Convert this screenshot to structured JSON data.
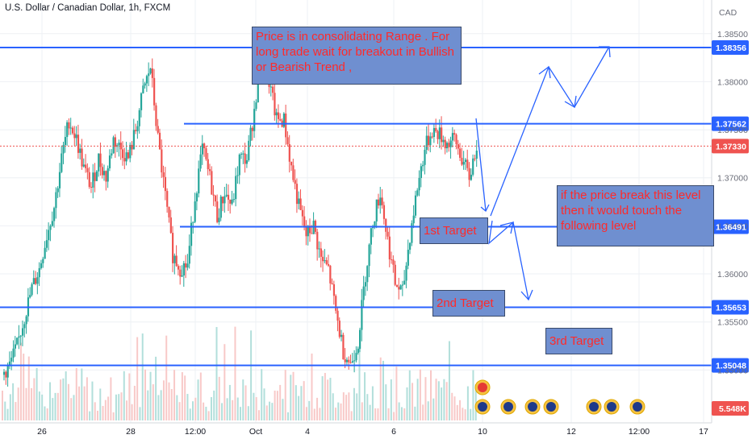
{
  "header": {
    "symbol_title": "U.S. Dollar / Canadian Dollar, 1h, FXCM",
    "currency": "CAD"
  },
  "colors": {
    "up": "#26a69a",
    "down": "#ef5350",
    "level_line": "#2962ff",
    "annotation_box": "#6f8fd0",
    "annotation_text": "#ff2a2a",
    "price_label_bg": "#2962ff",
    "current_label_bg": "#ef5350"
  },
  "annotations": {
    "consolidation_note": "Price is in consolidating Range . For long trade wait for breakout in Bullish or Bearish Trend ,",
    "breakout_note": "if the price break this level then it would touch the following level",
    "target1": "1st Target",
    "target2": "2nd Target",
    "target3": "3rd Target"
  },
  "chart_data": {
    "type": "candlestick",
    "title": "U.S. Dollar / Canadian Dollar, 1h, FXCM",
    "y_unit": "CAD",
    "ylim": [
      1.3445,
      1.3885
    ],
    "y_ticks": [
      "1.38500",
      "1.38000",
      "1.37500",
      "1.37000",
      "1.36500",
      "1.36000",
      "1.35500",
      "1.35000"
    ],
    "x_ticks": [
      "26",
      "28",
      "12:00",
      "Oct",
      "4",
      "6",
      "10",
      "12",
      "12:00",
      "17"
    ],
    "levels": [
      {
        "price": 1.38356,
        "label": "1.38356",
        "start": "full"
      },
      {
        "price": 1.37562,
        "label": "1.37562",
        "start": "28"
      },
      {
        "price": 1.36491,
        "label": "1.36491",
        "start": "28"
      },
      {
        "price": 1.35653,
        "label": "1.35653",
        "start": "full"
      },
      {
        "price": 1.35048,
        "label": "1.35048",
        "start": "full"
      }
    ],
    "current_price": {
      "price": 1.3733,
      "label": "1.37330"
    },
    "volume_label": "5.548K",
    "price_path": [
      1.3495,
      1.3505,
      1.3525,
      1.3555,
      1.3585,
      1.3605,
      1.364,
      1.367,
      1.372,
      1.376,
      1.374,
      1.371,
      1.369,
      1.372,
      1.37,
      1.374,
      1.373,
      1.372,
      1.375,
      1.379,
      1.3815,
      1.374,
      1.368,
      1.362,
      1.3606,
      1.361,
      1.368,
      1.373,
      1.37,
      1.366,
      1.3685,
      1.367,
      1.372,
      1.372,
      1.377,
      1.3835,
      1.38,
      1.376,
      1.376,
      1.371,
      1.367,
      1.364,
      1.365,
      1.3615,
      1.3605,
      1.356,
      1.352,
      1.3506,
      1.353,
      1.36,
      1.3655,
      1.3685,
      1.3635,
      1.359,
      1.358,
      1.364,
      1.369,
      1.373,
      1.375,
      1.3745,
      1.3735,
      1.374,
      1.372,
      1.37,
      1.3735
    ],
    "volume_bars": 180
  }
}
